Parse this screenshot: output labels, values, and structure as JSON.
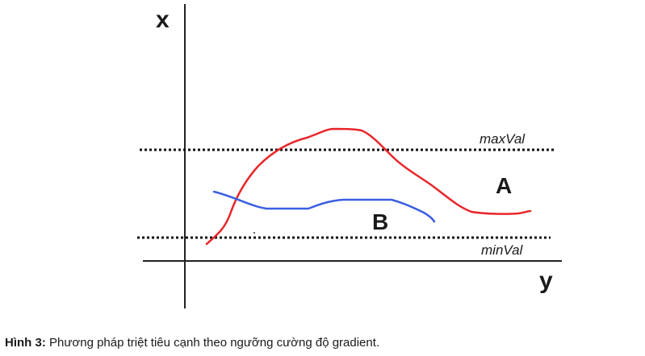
{
  "diagram": {
    "axes": {
      "vertical_label": "x",
      "horizontal_label": "y"
    },
    "thresholds": [
      {
        "id": "max",
        "label": "maxVal"
      },
      {
        "id": "min",
        "label": "minVal"
      }
    ],
    "curves": [
      {
        "id": "A",
        "label": "A",
        "color": "#e8262a"
      },
      {
        "id": "B",
        "label": "B",
        "color": "#3b5fe0"
      }
    ]
  },
  "caption": {
    "label": "Hình 3:",
    "text": "Phương pháp triệt tiêu cạnh theo ngưỡng cường độ gradient."
  }
}
